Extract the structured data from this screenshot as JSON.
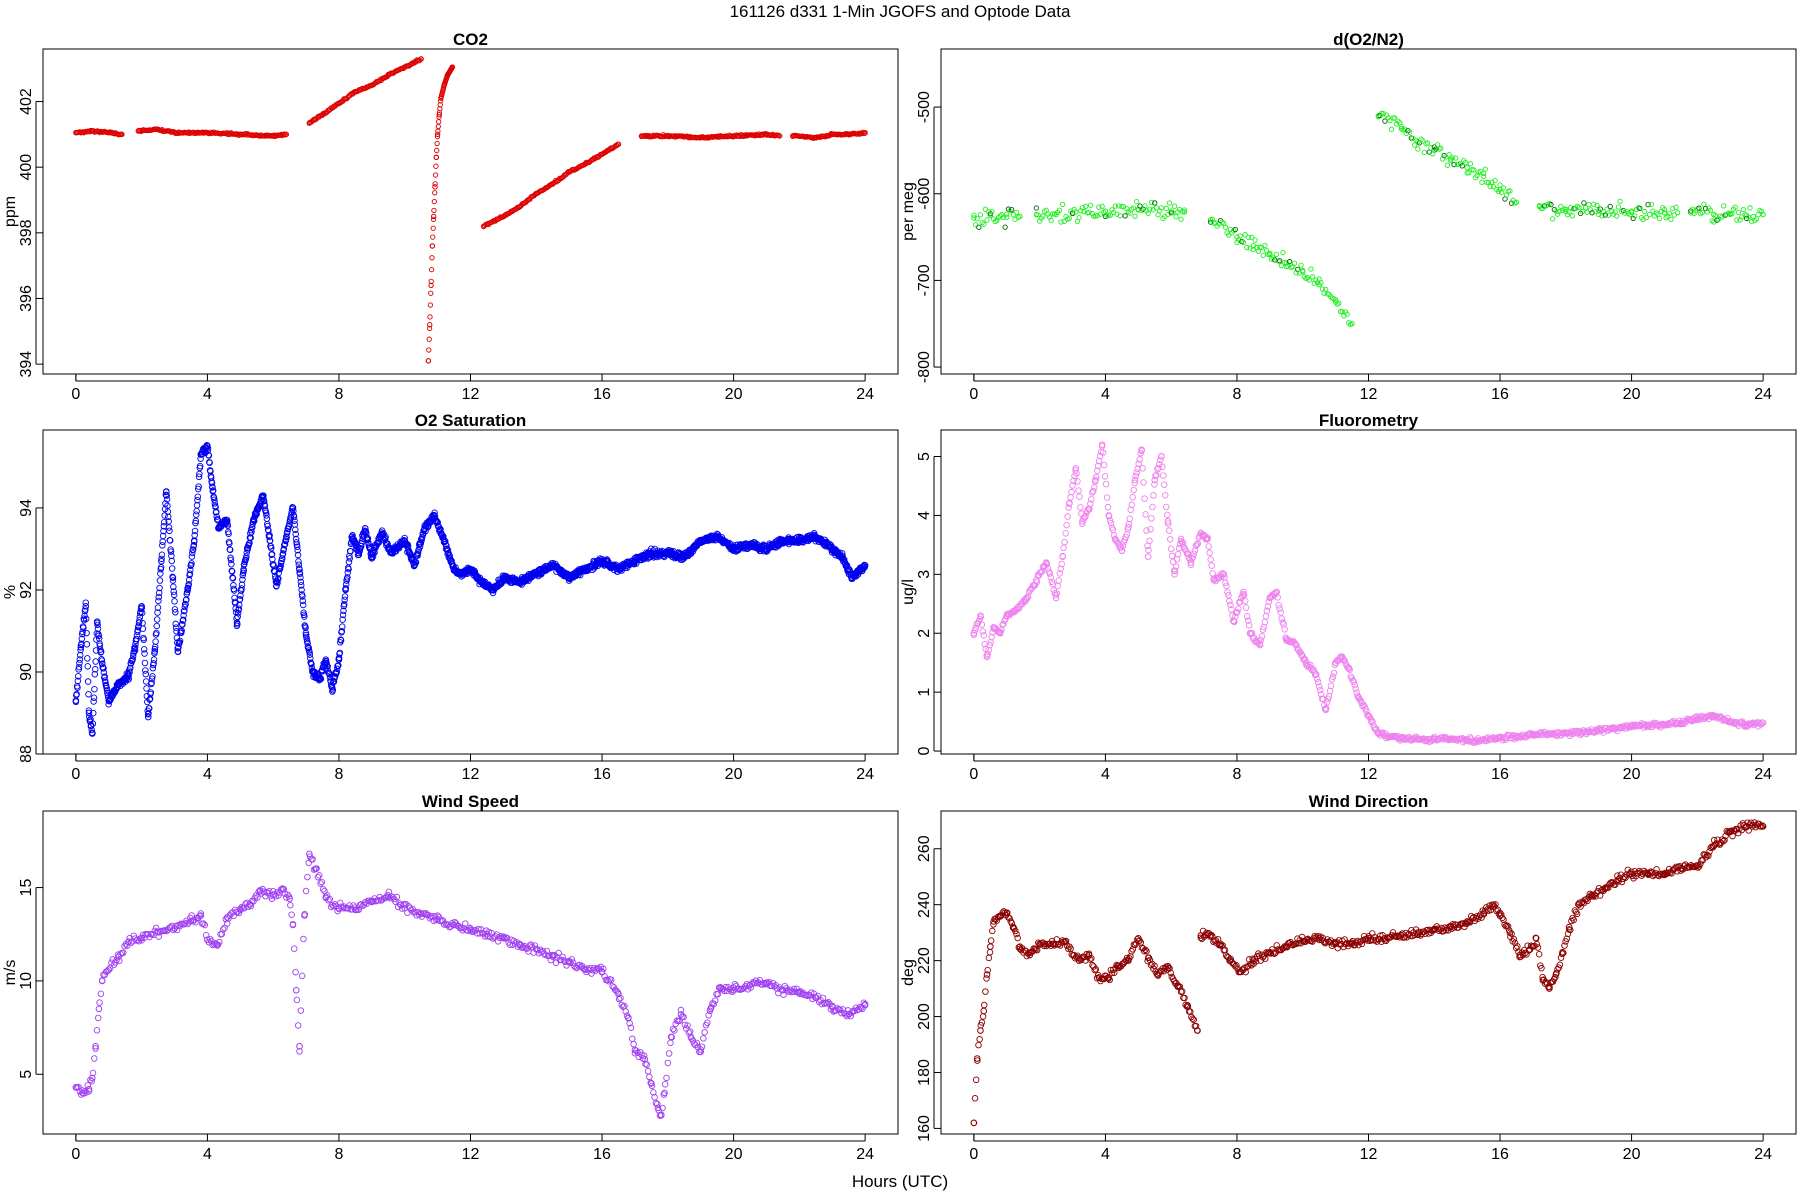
{
  "page": {
    "main_title": "161126   d331   1-Min  JGOFS and Optode Data",
    "x_caption": "Hours (UTC)"
  },
  "chart_data": [
    {
      "id": "co2",
      "type": "scatter",
      "title": "CO2",
      "xlabel": "Hours (UTC)",
      "ylabel": "ppm",
      "xlim": [
        -1,
        25
      ],
      "ylim": [
        393.7,
        403.6
      ],
      "xticks": [
        0,
        4,
        8,
        12,
        16,
        20,
        24
      ],
      "yticks": [
        394,
        396,
        398,
        400,
        402
      ],
      "color": "#dd0000",
      "marker_size": 2.2,
      "series": [
        {
          "name": "segment-1",
          "x": [
            0,
            0.5,
            1.0,
            1.4
          ],
          "y": [
            401.05,
            401.1,
            401.05,
            401.0
          ]
        },
        {
          "name": "segment-2",
          "x": [
            1.9,
            2.5,
            3.0,
            4.0,
            5.0,
            6.0,
            6.4
          ],
          "y": [
            401.1,
            401.15,
            401.05,
            401.05,
            401.0,
            400.95,
            401.0
          ]
        },
        {
          "name": "segment-3",
          "x": [
            7.1,
            7.5,
            8.0,
            8.5,
            9.0,
            9.5,
            10.0,
            10.5
          ],
          "y": [
            401.35,
            401.6,
            401.95,
            402.3,
            402.5,
            402.8,
            403.05,
            403.3
          ]
        },
        {
          "name": "segment-4",
          "x": [
            10.72,
            10.76,
            10.8,
            10.84,
            10.88,
            10.92,
            10.96,
            11.0,
            11.05,
            11.1,
            11.2,
            11.3,
            11.45
          ],
          "y": [
            394.1,
            395.2,
            396.4,
            397.6,
            398.5,
            399.4,
            400.3,
            401.0,
            401.6,
            402.1,
            402.5,
            402.8,
            403.05
          ]
        },
        {
          "name": "segment-5",
          "x": [
            12.4,
            13.0,
            13.5,
            14.0,
            14.5,
            15.0,
            15.5,
            16.0,
            16.5
          ],
          "y": [
            398.2,
            398.5,
            398.8,
            399.2,
            399.5,
            399.85,
            400.1,
            400.4,
            400.7
          ]
        },
        {
          "name": "segment-6",
          "x": [
            17.2,
            18.0,
            19.0,
            20.0,
            21.0,
            21.4
          ],
          "y": [
            400.95,
            400.95,
            400.9,
            400.95,
            401.0,
            400.95
          ]
        },
        {
          "name": "segment-7",
          "x": [
            21.8,
            22.5,
            23.0,
            23.5,
            24.0
          ],
          "y": [
            400.95,
            400.9,
            401.0,
            401.0,
            401.05
          ]
        }
      ]
    },
    {
      "id": "do2n2",
      "type": "scatter",
      "title": "d(O2/N2)",
      "xlabel": "Hours (UTC)",
      "ylabel": "per meg",
      "xlim": [
        -1,
        25
      ],
      "ylim": [
        -808,
        -433
      ],
      "xticks": [
        0,
        4,
        8,
        12,
        16,
        20,
        24
      ],
      "yticks": [
        -800,
        -700,
        -600,
        -500
      ],
      "color": "#22ee22",
      "marker_size": 2.2,
      "series": [
        {
          "name": "segment-1",
          "x": [
            0,
            0.5,
            1.0,
            1.4
          ],
          "y": [
            -628,
            -625,
            -627,
            -626
          ]
        },
        {
          "name": "segment-2",
          "x": [
            1.9,
            3.0,
            4.0,
            5.0,
            6.0,
            6.4
          ],
          "y": [
            -624,
            -622,
            -620,
            -618,
            -620,
            -621
          ]
        },
        {
          "name": "segment-3",
          "x": [
            7.2,
            8.0,
            8.5,
            9.0,
            9.5,
            10.0,
            10.5,
            11.0,
            11.5
          ],
          "y": [
            -630,
            -650,
            -660,
            -670,
            -680,
            -690,
            -705,
            -725,
            -750
          ]
        },
        {
          "name": "segment-4",
          "x": [
            12.3,
            13.0,
            13.5,
            14.0,
            14.5,
            15.0,
            15.5,
            16.0,
            16.5
          ],
          "y": [
            -510,
            -525,
            -540,
            -550,
            -560,
            -570,
            -580,
            -595,
            -610
          ]
        },
        {
          "name": "segment-5",
          "x": [
            17.2,
            18.0,
            19.0,
            20.0,
            21.0,
            21.4
          ],
          "y": [
            -615,
            -618,
            -620,
            -620,
            -622,
            -622
          ]
        },
        {
          "name": "segment-6",
          "x": [
            21.8,
            22.5,
            23.0,
            23.5,
            24.0
          ],
          "y": [
            -622,
            -624,
            -623,
            -625,
            -624
          ]
        }
      ]
    },
    {
      "id": "o2sat",
      "type": "scatter",
      "title": "O2 Saturation",
      "xlabel": "Hours (UTC)",
      "ylabel": "%",
      "xlim": [
        -1,
        25
      ],
      "ylim": [
        88,
        95.9
      ],
      "xticks": [
        0,
        4,
        8,
        12,
        16,
        20,
        24
      ],
      "yticks": [
        88,
        90,
        92,
        94
      ],
      "color": "#0000ee",
      "marker_size": 2.8,
      "series": [
        {
          "name": "O2 Saturation",
          "x": [
            0,
            0.15,
            0.3,
            0.4,
            0.5,
            0.65,
            0.8,
            1.0,
            1.3,
            1.6,
            1.8,
            2.0,
            2.2,
            2.4,
            2.6,
            2.75,
            2.95,
            3.1,
            3.4,
            3.6,
            3.8,
            4.0,
            4.15,
            4.35,
            4.6,
            4.9,
            5.1,
            5.4,
            5.7,
            5.9,
            6.1,
            6.4,
            6.6,
            6.8,
            7.0,
            7.2,
            7.4,
            7.6,
            7.8,
            8.0,
            8.2,
            8.4,
            8.6,
            8.8,
            9.0,
            9.3,
            9.6,
            10.0,
            10.3,
            10.6,
            10.9,
            11.2,
            11.5,
            11.7,
            12.0,
            12.3,
            12.7,
            13.0,
            13.5,
            14.0,
            14.5,
            15.0,
            15.5,
            16.0,
            16.5,
            17.0,
            17.5,
            18.0,
            18.5,
            19.0,
            19.5,
            20.0,
            20.5,
            21.0,
            21.5,
            22.0,
            22.5,
            23.0,
            23.3,
            23.6,
            24.0
          ],
          "y": [
            89.3,
            90.6,
            91.6,
            89.0,
            88.5,
            91.2,
            90.2,
            89.3,
            89.7,
            89.9,
            90.6,
            91.6,
            88.9,
            90.5,
            92.7,
            94.4,
            92.3,
            90.5,
            92.0,
            93.2,
            95.3,
            95.5,
            94.5,
            93.5,
            93.7,
            91.2,
            92.5,
            93.7,
            94.3,
            93.2,
            92.1,
            93.3,
            94.0,
            92.5,
            90.9,
            90.0,
            89.8,
            90.3,
            89.6,
            90.3,
            92.0,
            93.3,
            92.9,
            93.5,
            92.8,
            93.4,
            92.9,
            93.2,
            92.6,
            93.5,
            93.8,
            93.2,
            92.5,
            92.4,
            92.5,
            92.2,
            92.0,
            92.3,
            92.2,
            92.4,
            92.6,
            92.3,
            92.5,
            92.7,
            92.5,
            92.7,
            92.9,
            92.9,
            92.8,
            93.2,
            93.3,
            93.0,
            93.1,
            93.0,
            93.2,
            93.2,
            93.3,
            93.0,
            92.8,
            92.3,
            92.6
          ]
        }
      ]
    },
    {
      "id": "fluor",
      "type": "scatter",
      "title": "Fluorometry",
      "xlabel": "Hours (UTC)",
      "ylabel": "ug/l",
      "xlim": [
        -1,
        25
      ],
      "ylim": [
        -0.05,
        5.45
      ],
      "xticks": [
        0,
        4,
        8,
        12,
        16,
        20,
        24
      ],
      "yticks": [
        0,
        1,
        2,
        3,
        4,
        5
      ],
      "color": "#ee82ee",
      "marker_size": 2.8,
      "series": [
        {
          "name": "Fluorometry",
          "x": [
            0,
            0.2,
            0.4,
            0.6,
            0.8,
            1.0,
            1.3,
            1.6,
            1.9,
            2.2,
            2.5,
            2.7,
            2.9,
            3.1,
            3.3,
            3.5,
            3.7,
            3.9,
            4.1,
            4.3,
            4.5,
            4.7,
            4.9,
            5.1,
            5.3,
            5.5,
            5.7,
            5.9,
            6.1,
            6.3,
            6.6,
            6.9,
            7.1,
            7.3,
            7.6,
            7.9,
            8.2,
            8.4,
            8.7,
            9.0,
            9.2,
            9.5,
            9.8,
            10.1,
            10.4,
            10.7,
            11.0,
            11.2,
            11.4,
            11.7,
            12.0,
            12.3,
            12.7,
            13.0,
            13.5,
            14.0,
            14.5,
            15.0,
            15.5,
            16.0,
            16.5,
            17.0,
            17.5,
            18.0,
            18.5,
            19.0,
            19.5,
            20.0,
            20.5,
            21.0,
            21.5,
            22.0,
            22.5,
            23.0,
            23.5,
            24.0
          ],
          "y": [
            2.0,
            2.3,
            1.6,
            2.1,
            2.0,
            2.3,
            2.4,
            2.6,
            2.9,
            3.2,
            2.6,
            3.3,
            4.2,
            4.8,
            3.9,
            4.1,
            4.6,
            5.2,
            4.0,
            3.6,
            3.4,
            3.8,
            4.6,
            5.1,
            3.3,
            4.6,
            5.0,
            3.9,
            3.0,
            3.6,
            3.2,
            3.7,
            3.6,
            2.9,
            3.0,
            2.2,
            2.7,
            2.0,
            1.8,
            2.6,
            2.7,
            1.9,
            1.8,
            1.5,
            1.3,
            0.7,
            1.5,
            1.6,
            1.4,
            0.9,
            0.6,
            0.3,
            0.25,
            0.22,
            0.2,
            0.2,
            0.2,
            0.18,
            0.2,
            0.22,
            0.25,
            0.28,
            0.3,
            0.3,
            0.32,
            0.35,
            0.38,
            0.42,
            0.44,
            0.45,
            0.48,
            0.55,
            0.6,
            0.5,
            0.45,
            0.48
          ]
        }
      ]
    },
    {
      "id": "windspeed",
      "type": "scatter",
      "title": "Wind Speed",
      "xlabel": "Hours (UTC)",
      "ylabel": "m/s",
      "xlim": [
        -1,
        25
      ],
      "ylim": [
        1.8,
        19.1
      ],
      "xticks": [
        0,
        4,
        8,
        12,
        16,
        20,
        24
      ],
      "yticks": [
        5,
        10,
        15
      ],
      "color": "#a040f0",
      "marker_size": 2.8,
      "series": [
        {
          "name": "Wind Speed",
          "x": [
            0,
            0.2,
            0.4,
            0.5,
            0.6,
            0.7,
            0.8,
            1.0,
            1.3,
            1.6,
            2.0,
            2.5,
            3.0,
            3.5,
            3.8,
            4.0,
            4.3,
            4.6,
            5.0,
            5.3,
            5.6,
            6.0,
            6.3,
            6.5,
            6.6,
            6.7,
            6.8,
            6.95,
            7.1,
            7.3,
            7.6,
            8.0,
            8.5,
            9.0,
            9.5,
            10.0,
            10.5,
            11.0,
            11.5,
            12.0,
            12.5,
            13.0,
            13.5,
            14.0,
            14.5,
            15.0,
            15.5,
            16.0,
            16.5,
            16.8,
            17.0,
            17.3,
            17.5,
            17.7,
            17.8,
            17.9,
            18.1,
            18.4,
            18.7,
            19.0,
            19.3,
            19.6,
            20.0,
            20.5,
            21.0,
            21.5,
            22.0,
            22.5,
            23.0,
            23.5,
            24.0
          ],
          "y": [
            4.3,
            4.0,
            4.2,
            4.8,
            6.5,
            8.5,
            10.0,
            10.6,
            11.3,
            12.1,
            12.3,
            12.6,
            12.8,
            13.2,
            13.5,
            12.2,
            11.9,
            13.4,
            13.8,
            14.1,
            14.8,
            14.6,
            14.9,
            14.4,
            13.0,
            9.5,
            6.5,
            13.5,
            16.8,
            16.0,
            14.5,
            13.9,
            13.8,
            14.3,
            14.5,
            13.9,
            13.6,
            13.3,
            13.0,
            12.8,
            12.5,
            12.3,
            11.9,
            11.7,
            11.3,
            11.0,
            10.6,
            10.5,
            9.3,
            8.0,
            6.3,
            5.8,
            4.5,
            3.2,
            2.8,
            4.0,
            7.0,
            8.2,
            7.0,
            6.2,
            8.5,
            9.6,
            9.5,
            9.8,
            9.9,
            9.5,
            9.4,
            9.1,
            8.6,
            8.2,
            8.7
          ]
        }
      ]
    },
    {
      "id": "winddir",
      "type": "scatter",
      "title": "Wind Direction",
      "xlabel": "Hours (UTC)",
      "ylabel": "deg",
      "xlim": [
        -1,
        25
      ],
      "ylim": [
        158,
        273.5
      ],
      "xticks": [
        0,
        4,
        8,
        12,
        16,
        20,
        24
      ],
      "yticks": [
        160,
        180,
        200,
        220,
        240,
        260
      ],
      "color": "#8b0000",
      "marker_size": 2.8,
      "series": [
        {
          "name": "segment-1",
          "x": [
            0,
            0.1,
            0.2,
            0.3,
            0.4,
            0.5,
            0.6,
            0.8,
            1.0,
            1.2,
            1.4,
            1.7,
            2.0,
            2.4,
            2.8,
            3.2,
            3.5,
            3.8,
            4.1,
            4.4,
            4.7,
            5.0,
            5.3,
            5.6,
            5.9,
            6.2,
            6.5,
            6.8
          ],
          "y": [
            162,
            185,
            195,
            202,
            215,
            225,
            234,
            236,
            237,
            232,
            225,
            222,
            226,
            226,
            227,
            220,
            222,
            214,
            214,
            218,
            220,
            228,
            221,
            215,
            218,
            211,
            204,
            195
          ]
        },
        {
          "name": "segment-2",
          "x": [
            6.9,
            7.2,
            7.5,
            7.8,
            8.1,
            8.5,
            9.0,
            9.5,
            10.0,
            10.5,
            11.0,
            11.5,
            12.0,
            12.5,
            13.0,
            13.5,
            14.0,
            14.5,
            15.0,
            15.5,
            15.8,
            16.0,
            16.3,
            16.6,
            16.9,
            17.1,
            17.3,
            17.5,
            17.7,
            17.9,
            18.1,
            18.4,
            18.8,
            19.2,
            19.6,
            20.0,
            20.5,
            21.0,
            21.5,
            22.0,
            22.5,
            23.0,
            23.5,
            24.0
          ],
          "y": [
            229,
            229,
            226,
            220,
            216,
            220,
            223,
            225,
            227,
            228,
            226,
            226,
            228,
            228,
            229,
            230,
            231,
            232,
            234,
            237,
            240,
            236,
            230,
            222,
            224,
            228,
            213,
            210,
            215,
            223,
            232,
            240,
            243,
            246,
            249,
            251,
            251,
            251,
            253,
            254,
            261,
            266,
            268,
            268
          ]
        }
      ]
    }
  ]
}
